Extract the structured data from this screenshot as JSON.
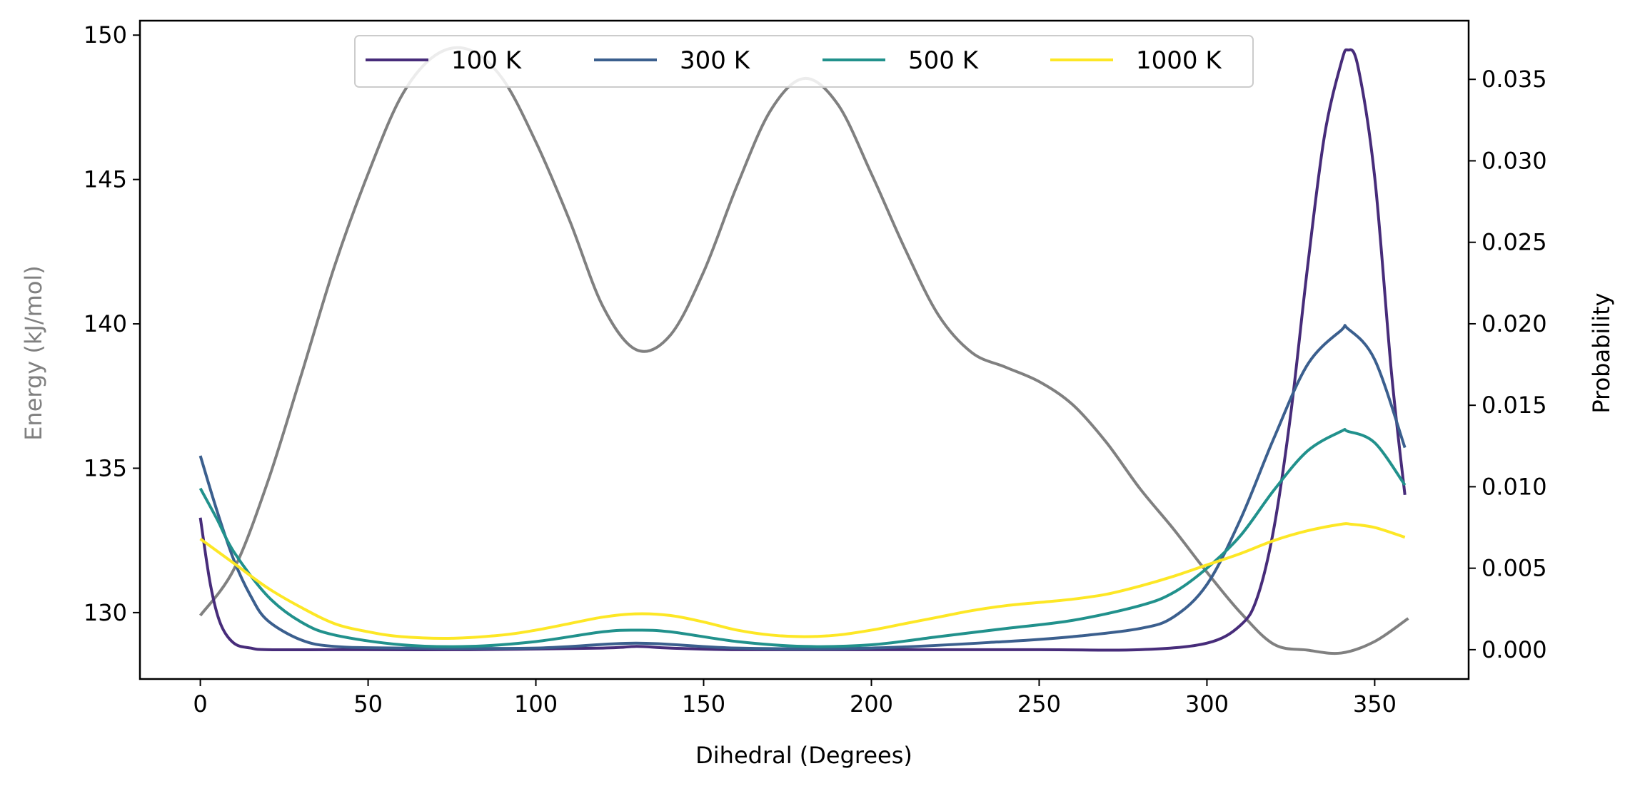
{
  "chart_data": {
    "type": "line",
    "xlabel": "Dihedral (Degrees)",
    "ylabel_left": "Energy (kJ/mol)",
    "ylabel_right": "Probability",
    "xlim": [
      -18,
      378
    ],
    "ylim_left": [
      127.7,
      150.5
    ],
    "ylim_right": [
      -0.0018,
      0.0386
    ],
    "x_ticks": [
      0,
      50,
      100,
      150,
      200,
      250,
      300,
      350
    ],
    "y_left_ticks": [
      130,
      135,
      140,
      145,
      150
    ],
    "y_right_ticks": [
      0.0,
      0.005,
      0.01,
      0.015,
      0.02,
      0.025,
      0.03,
      0.035
    ],
    "y_right_tick_labels": [
      "0.000",
      "0.005",
      "0.010",
      "0.015",
      "0.020",
      "0.025",
      "0.030",
      "0.035"
    ],
    "colors": {
      "energy": "#808080",
      "100 K": "#472c7a",
      "300 K": "#3b5f8e",
      "500 K": "#21918c",
      "1000 K": "#fde725"
    },
    "energy_series": {
      "name": "Energy",
      "x": [
        0,
        10,
        20,
        30,
        40,
        50,
        60,
        70,
        80,
        90,
        100,
        110,
        120,
        130,
        140,
        150,
        160,
        170,
        180,
        190,
        200,
        210,
        220,
        230,
        240,
        250,
        260,
        270,
        280,
        290,
        300,
        310,
        320,
        330,
        340,
        350,
        360
      ],
      "values": [
        129.9,
        131.5,
        134.5,
        138.2,
        142.0,
        145.2,
        147.9,
        149.3,
        149.5,
        148.5,
        146.3,
        143.6,
        140.6,
        139.1,
        139.6,
        141.8,
        144.8,
        147.4,
        148.5,
        147.6,
        145.2,
        142.6,
        140.3,
        139.0,
        138.5,
        138.0,
        137.2,
        135.9,
        134.3,
        132.9,
        131.4,
        130.0,
        128.9,
        128.7,
        128.6,
        129.0,
        129.8
      ]
    },
    "series": [
      {
        "name": "100 K",
        "legend_label": "100 K",
        "x": [
          0,
          3,
          6,
          10,
          15,
          20,
          40,
          80,
          120,
          130,
          140,
          160,
          200,
          250,
          280,
          300,
          310,
          315,
          320,
          325,
          330,
          335,
          340,
          342,
          345,
          350,
          355,
          359
        ],
        "values": [
          0.0081,
          0.004,
          0.0016,
          0.0004,
          0.0001,
          0.0,
          0.0,
          0.0,
          0.0001,
          0.0002,
          0.0001,
          0.0,
          0.0,
          0.0,
          0.0,
          0.0004,
          0.0015,
          0.0032,
          0.0075,
          0.0145,
          0.0235,
          0.0315,
          0.036,
          0.0368,
          0.0358,
          0.029,
          0.017,
          0.0095
        ]
      },
      {
        "name": "300 K",
        "legend_label": "300 K",
        "x": [
          0,
          5,
          10,
          15,
          20,
          30,
          40,
          60,
          100,
          130,
          160,
          200,
          240,
          260,
          280,
          290,
          300,
          310,
          320,
          330,
          340,
          342,
          350,
          359
        ],
        "values": [
          0.0119,
          0.0085,
          0.0055,
          0.0033,
          0.0018,
          0.0006,
          0.0002,
          0.0001,
          0.0001,
          0.0004,
          0.0001,
          0.0001,
          0.0005,
          0.0008,
          0.0013,
          0.002,
          0.004,
          0.008,
          0.013,
          0.0175,
          0.0196,
          0.0197,
          0.0178,
          0.0124
        ]
      },
      {
        "name": "500 K",
        "legend_label": "500 K",
        "x": [
          0,
          5,
          10,
          20,
          30,
          40,
          60,
          80,
          100,
          120,
          130,
          140,
          160,
          180,
          200,
          220,
          240,
          260,
          280,
          290,
          300,
          310,
          320,
          330,
          340,
          342,
          350,
          359
        ],
        "values": [
          0.0099,
          0.008,
          0.006,
          0.0033,
          0.0017,
          0.0009,
          0.0003,
          0.0002,
          0.0005,
          0.0011,
          0.0012,
          0.0011,
          0.0005,
          0.0002,
          0.0003,
          0.0008,
          0.0013,
          0.0018,
          0.0027,
          0.0035,
          0.005,
          0.007,
          0.0098,
          0.0122,
          0.0134,
          0.0134,
          0.0127,
          0.0101
        ]
      },
      {
        "name": "1000 K",
        "legend_label": "1000 K",
        "x": [
          0,
          10,
          20,
          30,
          40,
          50,
          60,
          75,
          90,
          100,
          110,
          120,
          130,
          140,
          150,
          160,
          170,
          180,
          190,
          200,
          210,
          220,
          230,
          240,
          250,
          260,
          270,
          280,
          290,
          300,
          310,
          320,
          330,
          340,
          343,
          350,
          359
        ],
        "values": [
          0.0068,
          0.0053,
          0.0038,
          0.0026,
          0.0016,
          0.0011,
          0.0008,
          0.0007,
          0.0009,
          0.0012,
          0.0016,
          0.002,
          0.0022,
          0.0021,
          0.0017,
          0.0012,
          0.0009,
          0.0008,
          0.0009,
          0.0012,
          0.0016,
          0.002,
          0.0024,
          0.0027,
          0.0029,
          0.0031,
          0.0034,
          0.0039,
          0.0045,
          0.0052,
          0.0059,
          0.0067,
          0.0073,
          0.0077,
          0.0077,
          0.0075,
          0.0069
        ]
      }
    ],
    "legend_placement": "upper center, 4 columns",
    "grid": false
  }
}
